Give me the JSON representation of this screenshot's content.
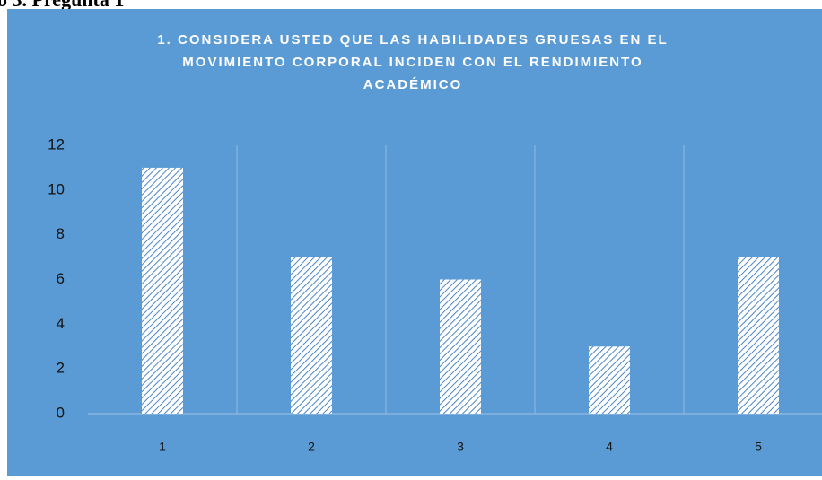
{
  "caption": "o 3. Pregunta 1",
  "chart_data": {
    "type": "bar",
    "title": [
      "1.    CONSIDERA USTED QUE LAS HABILIDADES GRUESAS EN EL",
      "MOVIMIENTO CORPORAL INCIDEN CON EL RENDIMIENTO",
      "ACADÉMICO"
    ],
    "categories": [
      "1",
      "2",
      "3",
      "4",
      "5"
    ],
    "values": [
      11,
      7,
      6,
      3,
      7
    ],
    "color": "#4a86c8",
    "background": "#5b9bd5",
    "ylim": [
      0,
      12
    ],
    "yticks": [
      0,
      2,
      4,
      6,
      8,
      10,
      12
    ],
    "grid": true
  }
}
